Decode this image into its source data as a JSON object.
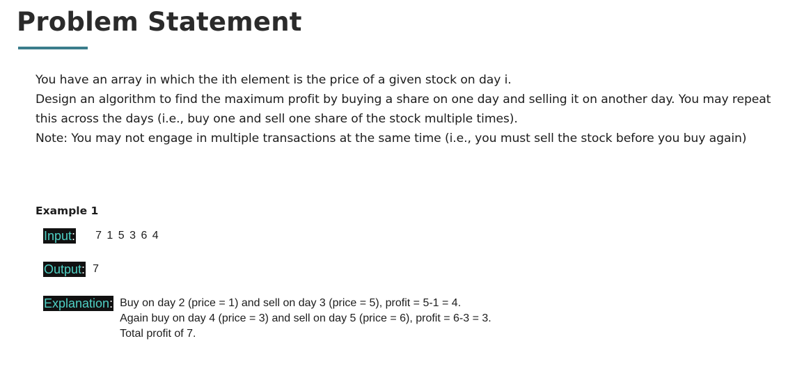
{
  "title": "Problem Statement",
  "colors": {
    "accent_underline": "#3b7d8c",
    "tag_background": "#111111",
    "tag_text": "#4fd1c5"
  },
  "statement": {
    "line1": "You have an array in which the ith element is the price of a given stock on day i.",
    "line2": "Design an algorithm to find the maximum profit by buying a share on one day and selling it on another day. You may repeat this across the days (i.e., buy one and sell one share of the stock multiple times).",
    "line3": "Note: You may not engage in multiple transactions at the same time (i.e., you must sell the stock before you buy again)"
  },
  "example": {
    "heading": "Example 1",
    "input_label": "Input",
    "input_value": "7 1 5 3 6 4",
    "output_label": "Output",
    "output_value": "7",
    "explanation_label": "Explanation",
    "separator": ":",
    "explanation_lines": [
      "Buy on day 2 (price = 1) and sell on day 3 (price = 5), profit = 5-1 = 4.",
      "Again buy on day 4 (price = 3) and sell on day 5 (price = 6), profit = 6-3 = 3.",
      "Total profit of 7."
    ]
  }
}
